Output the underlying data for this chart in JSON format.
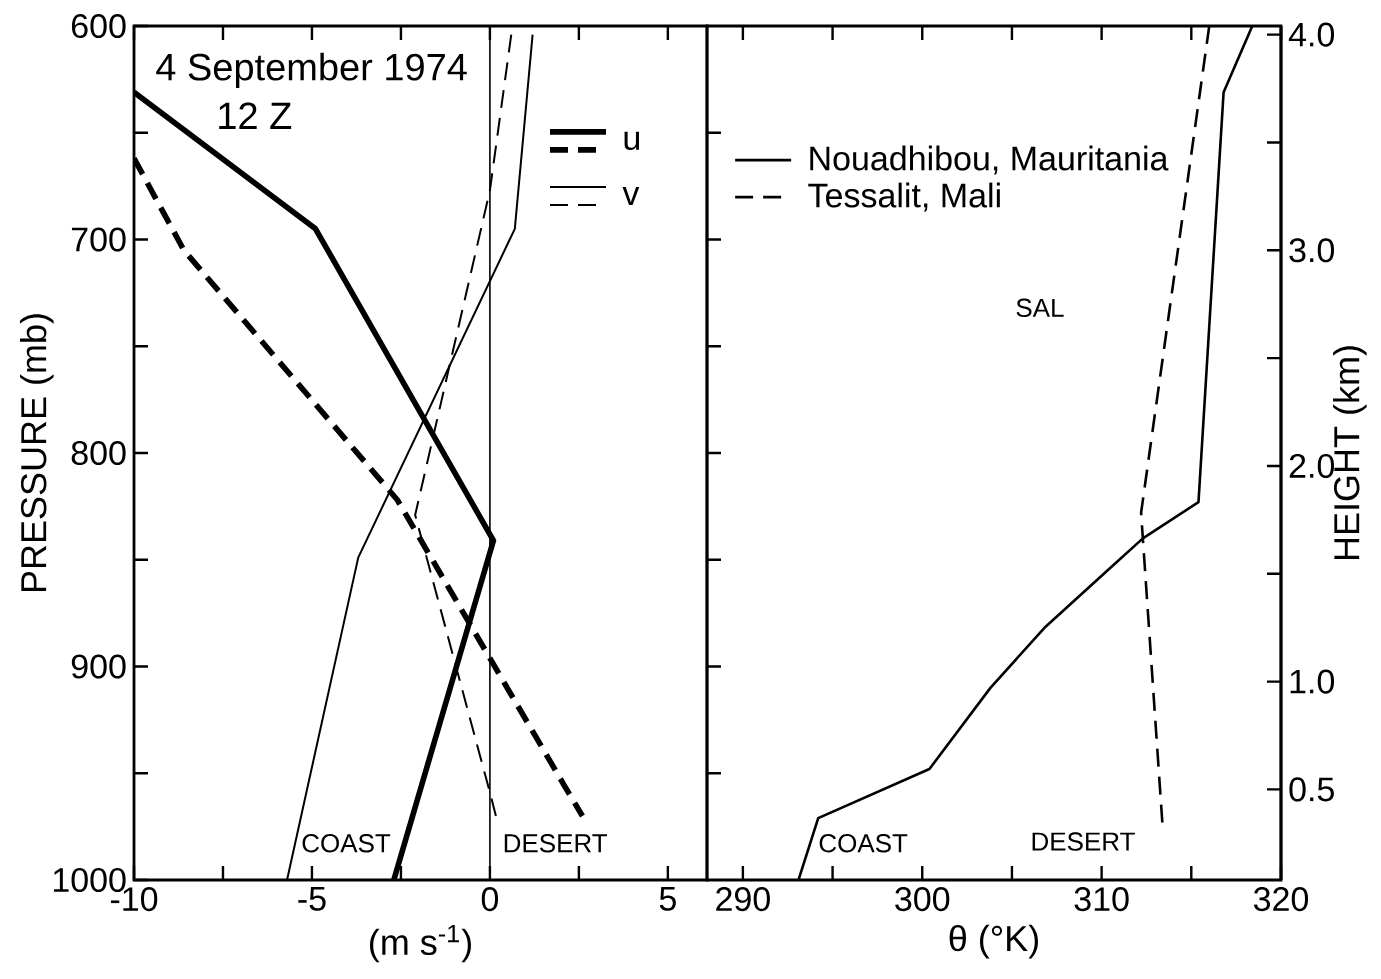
{
  "chart_data": [
    {
      "type": "line",
      "title": "4 September 1974",
      "subtitle": "12 Z",
      "xlabel": "(m s$^{-1}$)",
      "ylabel": "PRESSURE (mb)",
      "xlim": [
        -10,
        6.1
      ],
      "ylim": [
        1000,
        600
      ],
      "xticks": [
        -10,
        {
          "value": -7.5,
          "label": null
        },
        -5,
        {
          "value": -2.5,
          "label": null
        },
        0,
        {
          "value": 2.5,
          "label": null
        },
        5
      ],
      "yticks": [
        600,
        {
          "value": 650,
          "label": null
        },
        700,
        {
          "value": 750,
          "label": null
        },
        800,
        {
          "value": 850,
          "label": null
        },
        900,
        {
          "value": 950,
          "label": null
        },
        1000
      ],
      "legend": "top right",
      "ref_lines": [
        {
          "axis": "x",
          "value": 0
        }
      ],
      "annotations": [
        "COAST",
        "DESERT"
      ],
      "series": [
        {
          "name": "u",
          "color": "#000000",
          "line_style": "solid",
          "x": [
            -10,
            -4.9,
            0.1,
            -2.7
          ],
          "values": [
            631,
            695,
            841,
            1000
          ]
        },
        {
          "color": "#000000",
          "line_style": "dashed",
          "x": [
            -10,
            -8.6,
            -2.6,
            2.1,
            2.6
          ],
          "values": [
            662,
            705,
            822,
            956,
            970
          ]
        },
        {
          "name": "v",
          "color": "#000000",
          "line_style": "solid",
          "x": [
            1.2,
            0.7,
            -3.7,
            -5.7
          ],
          "values": [
            604,
            695,
            849,
            1000
          ]
        },
        {
          "color": "#000000",
          "line_style": "dashed",
          "x": [
            0.6,
            0,
            -2.1,
            0,
            0.2
          ],
          "values": [
            604,
            677,
            829,
            959,
            972
          ]
        }
      ]
    },
    {
      "type": "line",
      "xlabel": "θ (°K)",
      "y2label": "HEIGHT (km)",
      "xlim": [
        288,
        320
      ],
      "ylim": [
        1000,
        600
      ],
      "y2lim": [
        0.08,
        4.04
      ],
      "xticks": [
        290,
        {
          "value": 295,
          "label": null
        },
        300,
        {
          "value": 305,
          "label": null
        },
        310,
        {
          "value": 315,
          "label": null
        },
        320
      ],
      "yticks": [
        {
          "value": 650,
          "label": null
        },
        {
          "value": 700,
          "label": null
        },
        {
          "value": 750,
          "label": null
        },
        {
          "value": 800,
          "label": null
        },
        {
          "value": 850,
          "label": null
        },
        {
          "value": 900,
          "label": null
        },
        {
          "value": 950,
          "label": null
        }
      ],
      "y2ticks": [
        {
          "value": 0.5,
          "label": "0.5"
        },
        {
          "value": 1,
          "label": "1.0"
        },
        {
          "value": 1.5,
          "label": null
        },
        {
          "value": 2,
          "label": "2.0"
        },
        {
          "value": 2.5,
          "label": null
        },
        {
          "value": 3,
          "label": "3.0"
        },
        {
          "value": 3.5,
          "label": null
        },
        {
          "value": 4,
          "label": "4.0"
        }
      ],
      "legend": "top left",
      "tick_labels": "x",
      "annotations": [
        "SAL",
        "COAST",
        "DESERT"
      ],
      "series": [
        {
          "name": "Nouadhibou, Mauritania",
          "color": "#000000",
          "line_style": "solid",
          "x": [
            318.4,
            316.8,
            315.4,
            312.3,
            310.2,
            306.8,
            303.8,
            300.4,
            294.2,
            293.1
          ],
          "values": [
            600,
            631,
            823,
            840,
            856,
            882,
            910,
            948,
            971,
            1000
          ]
        },
        {
          "name": "Tessalit, Mali",
          "color": "#000000",
          "line_style": "dashed",
          "x": [
            316.0,
            312.2,
            313.4
          ],
          "values": [
            600,
            828,
            975
          ]
        }
      ]
    }
  ]
}
